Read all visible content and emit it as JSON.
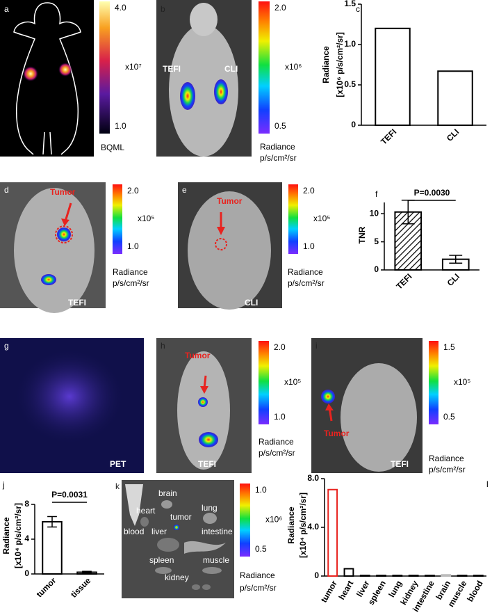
{
  "chart_data": [
    {
      "label": "c",
      "type": "bar",
      "ylabel": [
        "Radiance",
        "[x10⁶ p/s/cm²/sr]"
      ],
      "categories": [
        "TEFI",
        "CLI"
      ],
      "values": [
        1.2,
        0.67
      ],
      "color": "#000000",
      "fill": "#ffffff",
      "ylim": [
        0,
        1.5
      ],
      "yticks": [
        0,
        0.5,
        {
          "value": 1,
          "label": "1.0"
        },
        1.5
      ]
    },
    {
      "label": "f",
      "type": "bar",
      "ylabel": [
        "TNR"
      ],
      "categories": [
        "TEFI",
        "CLI"
      ],
      "values": [
        10.3,
        1.9
      ],
      "errors": [
        2.1,
        0.7
      ],
      "hatch": [
        true,
        false
      ],
      "annotation": "P=0.0030",
      "color": "#000000",
      "fill": "#ffffff",
      "ylim": [
        0,
        12
      ],
      "yticks": [
        0,
        5,
        10
      ]
    },
    {
      "label": "j",
      "type": "bar",
      "ylabel": [
        "Radiance",
        "[x10⁴ p/s/cm²/sr]"
      ],
      "categories": [
        "tumor",
        "tissue"
      ],
      "values": [
        6,
        0.2
      ],
      "errors": [
        0.6,
        0.1
      ],
      "annotation": "P=0.0031",
      "color": "#000000",
      "fill": "#ffffff",
      "ylim": [
        0,
        8
      ],
      "yticks": [
        0,
        4,
        8
      ]
    },
    {
      "label": "l",
      "type": "bar",
      "ylabel": [
        "Radiance",
        "[x10⁴ p/s/cm²/sr]"
      ],
      "categories": [
        "tumor",
        "heart",
        "liver",
        "spleen",
        "lung",
        "kidney",
        "intestine",
        "brain",
        "muscle",
        "blood"
      ],
      "values": [
        7.1,
        0.6,
        0.05,
        0.05,
        0.05,
        0.05,
        0.05,
        0.1,
        0.05,
        0.05
      ],
      "colors": [
        "#e8231f",
        "#000000",
        "#000000",
        "#000000",
        "#000000",
        "#000000",
        "#000000",
        "#bbbbbb",
        "#000000",
        "#000000"
      ],
      "fill": "#ffffff",
      "ylim": [
        0,
        8
      ],
      "yticks": [
        0,
        {
          "value": 4,
          "label": "4.0"
        },
        {
          "value": 8,
          "label": "8.0"
        }
      ]
    }
  ],
  "panels": {
    "a": {
      "label": "a",
      "cbar": [
        "4.0",
        "x10⁷",
        "1.0"
      ],
      "unit": [
        "BQML"
      ]
    },
    "b": {
      "label": "b",
      "marks": [
        "TEFI",
        "CLI"
      ],
      "cbar": [
        "2.0",
        "x10⁶",
        "0.5"
      ],
      "unit": [
        "Radiance",
        "p/s/cm²/sr"
      ]
    },
    "d": {
      "label": "d",
      "marks": [
        "Tumor",
        "TEFI"
      ],
      "cbar": [
        "2.0",
        "x10⁵",
        "1.0"
      ],
      "unit": [
        "Radiance",
        "p/s/cm²/sr"
      ]
    },
    "e": {
      "label": "e",
      "marks": [
        "Tumor",
        "CLI"
      ],
      "cbar": [
        "2.0",
        "x10⁵",
        "1.0"
      ],
      "unit": [
        "Radiance",
        "p/s/cm²/sr"
      ]
    },
    "g": {
      "label": "g",
      "marks": [
        "PET"
      ]
    },
    "h": {
      "label": "h",
      "marks": [
        "Tumor",
        "TEFI"
      ],
      "cbar": [
        "2.0",
        "x10⁵",
        "1.0"
      ],
      "unit": [
        "Radiance",
        "p/s/cm²/sr"
      ]
    },
    "i": {
      "label": "i",
      "marks": [
        "Tumor",
        "TEFI"
      ],
      "cbar": [
        "1.5",
        "x10⁵",
        "0.5"
      ],
      "unit": [
        "Radiance",
        "p/s/cm²/sr"
      ]
    },
    "k": {
      "label": "k",
      "marks": [
        "brain",
        "heart",
        "tumor",
        "lung",
        "blood",
        "liver",
        "intestine",
        "spleen",
        "muscle",
        "kidney"
      ],
      "cbar": [
        "1.0",
        "x10⁶",
        "0.5"
      ],
      "unit": [
        "Radiance",
        "p/s/cm²/sr"
      ]
    }
  }
}
